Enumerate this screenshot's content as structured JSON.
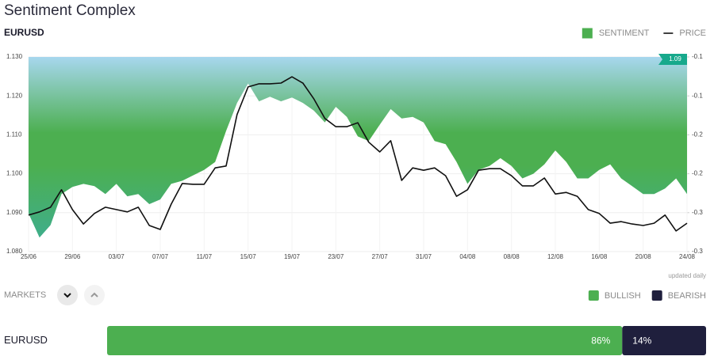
{
  "header": {
    "title": "Sentiment Complex",
    "symbol": "EURUSD"
  },
  "chart_data": {
    "type": "line",
    "categories": [
      "25/06",
      null,
      null,
      null,
      "29/06",
      null,
      null,
      null,
      "03/07",
      null,
      null,
      null,
      "07/07",
      null,
      null,
      null,
      "11/07",
      null,
      null,
      null,
      "15/07",
      null,
      null,
      null,
      "19/07",
      null,
      null,
      null,
      "23/07",
      null,
      null,
      null,
      "27/07",
      null,
      null,
      null,
      "31/07",
      null,
      null,
      null,
      "04/08",
      null,
      null,
      null,
      "08/08",
      null,
      null,
      null,
      "12/08",
      null,
      null,
      null,
      "16/08",
      null,
      null,
      null,
      "20/08",
      null,
      null,
      null,
      "24/08"
    ],
    "series": [
      {
        "name": "SENTIMENT",
        "color": "#4caf50",
        "axis": "y2",
        "fill": true,
        "values": [
          -0.251,
          -0.282,
          -0.266,
          -0.226,
          -0.217,
          -0.213,
          -0.216,
          -0.226,
          -0.213,
          -0.229,
          -0.226,
          -0.239,
          -0.233,
          -0.213,
          -0.209,
          -0.202,
          -0.195,
          -0.185,
          -0.145,
          -0.109,
          -0.084,
          -0.107,
          -0.101,
          -0.107,
          -0.102,
          -0.109,
          -0.119,
          -0.134,
          -0.114,
          -0.127,
          -0.152,
          -0.158,
          -0.137,
          -0.117,
          -0.129,
          -0.127,
          -0.134,
          -0.158,
          -0.162,
          -0.185,
          -0.213,
          -0.195,
          -0.19,
          -0.18,
          -0.19,
          -0.206,
          -0.2,
          -0.188,
          -0.17,
          -0.185,
          -0.206,
          -0.206,
          -0.195,
          -0.188,
          -0.206,
          -0.216,
          -0.226,
          -0.226,
          -0.219,
          -0.206,
          -0.226
        ]
      },
      {
        "name": "PRICE",
        "color": "#111111",
        "values": [
          1.0894,
          1.0902,
          1.0914,
          1.0959,
          1.0908,
          1.0871,
          1.0898,
          1.0914,
          1.0908,
          1.0902,
          1.0914,
          1.0867,
          1.0857,
          1.0922,
          1.0975,
          1.0973,
          1.0973,
          1.1015,
          1.102,
          1.1152,
          1.1223,
          1.1231,
          1.1231,
          1.1233,
          1.1249,
          1.1233,
          1.1192,
          1.1142,
          1.1121,
          1.1121,
          1.1131,
          1.1081,
          1.1056,
          1.1085,
          1.0983,
          1.1015,
          1.1009,
          1.1015,
          1.0995,
          1.0942,
          1.0959,
          1.1009,
          1.1013,
          1.1013,
          1.0995,
          1.0969,
          1.0969,
          1.0989,
          1.0948,
          1.0952,
          1.0942,
          1.0908,
          1.0898,
          1.0873,
          1.0877,
          1.0871,
          1.0867,
          1.0873,
          1.0894,
          1.0853,
          1.0873
        ]
      }
    ],
    "ylim": [
      1.08,
      1.13
    ],
    "yticks": [
      {
        "value": 1.08,
        "label": "1.080"
      },
      {
        "value": 1.09,
        "label": "1.090"
      },
      {
        "value": 1.1,
        "label": "1.100"
      },
      {
        "value": 1.11,
        "label": "1.110"
      },
      {
        "value": 1.12,
        "label": "1.120"
      },
      {
        "value": 1.13,
        "label": "1.130"
      }
    ],
    "y2lim": [
      -0.3,
      -0.05
    ],
    "y2ticks": [
      -0.3,
      {
        "value": -0.25,
        "label": "-0.3"
      },
      -0.2,
      {
        "value": -0.15,
        "label": "-0.2"
      },
      -0.1,
      {
        "value": -0.05,
        "label": "-0.1"
      }
    ],
    "grid": true,
    "legend": "top-right",
    "last_price_label": "1.09",
    "note": "updated daily"
  },
  "markets": {
    "label": "MARKETS",
    "series": [
      {
        "name": "BULLISH",
        "color": "#4caf50"
      },
      {
        "name": "BEARISH",
        "color": "#1f1f3d"
      }
    ],
    "rows": [
      {
        "name": "EURUSD",
        "values": [
          86,
          14
        ],
        "value_labels": [
          "86%",
          "14%"
        ]
      }
    ]
  }
}
